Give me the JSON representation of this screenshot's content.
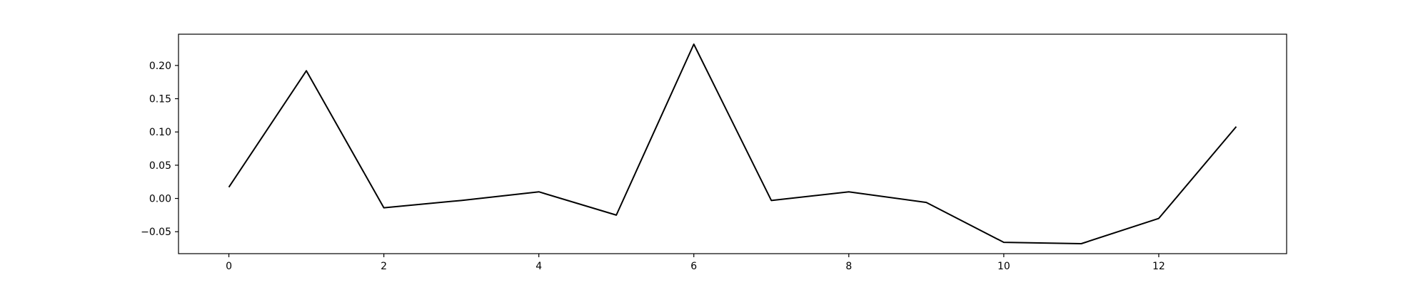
{
  "chart_data": {
    "type": "line",
    "title": "",
    "xlabel": "",
    "ylabel": "",
    "grid": false,
    "x": [
      0,
      1,
      2,
      3,
      4,
      5,
      6,
      7,
      8,
      9,
      10,
      11,
      12,
      13
    ],
    "series": [
      {
        "color": "#000000",
        "values": [
          0.017,
          0.192,
          -0.014,
          -0.003,
          0.01,
          -0.025,
          0.232,
          -0.003,
          0.01,
          -0.006,
          -0.066,
          -0.068,
          -0.03,
          0.108
        ]
      }
    ],
    "xlim": [
      -0.65,
      13.65
    ],
    "ylim": [
      -0.083,
      0.247
    ],
    "xticks": [
      0,
      2,
      4,
      6,
      8,
      10,
      12
    ],
    "xtick_labels": [
      "0",
      "2",
      "4",
      "6",
      "8",
      "10",
      "12"
    ],
    "yticks": [
      -0.05,
      0.0,
      0.05,
      0.1,
      0.15,
      0.2
    ],
    "ytick_labels": [
      "−0.05",
      "0.00",
      "0.05",
      "0.10",
      "0.15",
      "0.20"
    ]
  }
}
